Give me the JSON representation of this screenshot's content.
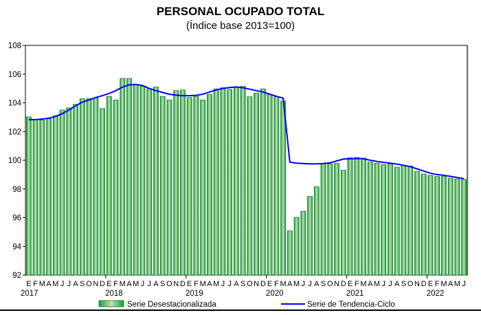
{
  "chart_data": {
    "type": "bar",
    "title": "PERSONAL OCUPADO TOTAL",
    "subtitle": "(Índice base 2013=100)",
    "xlabel": "",
    "ylabel": "",
    "ylim": [
      92,
      108
    ],
    "yticks": [
      92,
      94,
      96,
      98,
      100,
      102,
      104,
      106,
      108
    ],
    "grid": false,
    "legend_position": "bottom",
    "month_letters": [
      "E",
      "F",
      "M",
      "A",
      "M",
      "J",
      "J",
      "A",
      "S",
      "O",
      "N",
      "D"
    ],
    "years": [
      "2017",
      "2018",
      "2019",
      "2020",
      "2021",
      "2022"
    ],
    "start": "2017-01",
    "end": "2022-06",
    "series": [
      {
        "name": "Serie Desestacionalizada",
        "type": "bar",
        "color": "#1a9a3a",
        "values": [
          103.02,
          102.83,
          102.8,
          102.9,
          103.1,
          103.5,
          103.65,
          103.9,
          104.28,
          104.3,
          104.35,
          103.6,
          104.45,
          104.2,
          105.7,
          105.7,
          105.25,
          105.15,
          104.97,
          105.1,
          104.45,
          104.2,
          104.85,
          104.9,
          104.37,
          104.45,
          104.2,
          104.58,
          104.97,
          105.05,
          104.93,
          105.12,
          105.15,
          104.42,
          104.68,
          104.97,
          104.6,
          104.42,
          104.13,
          95.08,
          96.02,
          96.44,
          97.48,
          98.15,
          99.75,
          99.75,
          99.78,
          99.3,
          100.17,
          100.2,
          100.15,
          99.87,
          99.79,
          99.7,
          99.75,
          99.52,
          99.65,
          99.6,
          99.23,
          99.04,
          98.95,
          98.87,
          98.87,
          98.75,
          98.7,
          98.67
        ]
      },
      {
        "name": "Serie de Tendencia-Ciclo",
        "type": "line",
        "color": "#0000ff",
        "values": [
          102.82,
          102.83,
          102.87,
          102.93,
          103.05,
          103.25,
          103.5,
          103.8,
          104.05,
          104.2,
          104.37,
          104.5,
          104.65,
          104.85,
          105.1,
          105.25,
          105.28,
          105.2,
          105.0,
          104.85,
          104.72,
          104.6,
          104.53,
          104.5,
          104.5,
          104.52,
          104.6,
          104.75,
          104.9,
          105.0,
          105.07,
          105.1,
          105.05,
          104.95,
          104.85,
          104.75,
          104.6,
          104.45,
          104.33,
          99.87,
          99.8,
          99.77,
          99.75,
          99.75,
          99.77,
          99.82,
          99.95,
          100.08,
          100.1,
          100.12,
          100.1,
          100.0,
          99.92,
          99.85,
          99.8,
          99.73,
          99.65,
          99.55,
          99.4,
          99.25,
          99.1,
          99.0,
          98.95,
          98.88,
          98.8,
          98.72
        ]
      }
    ]
  }
}
